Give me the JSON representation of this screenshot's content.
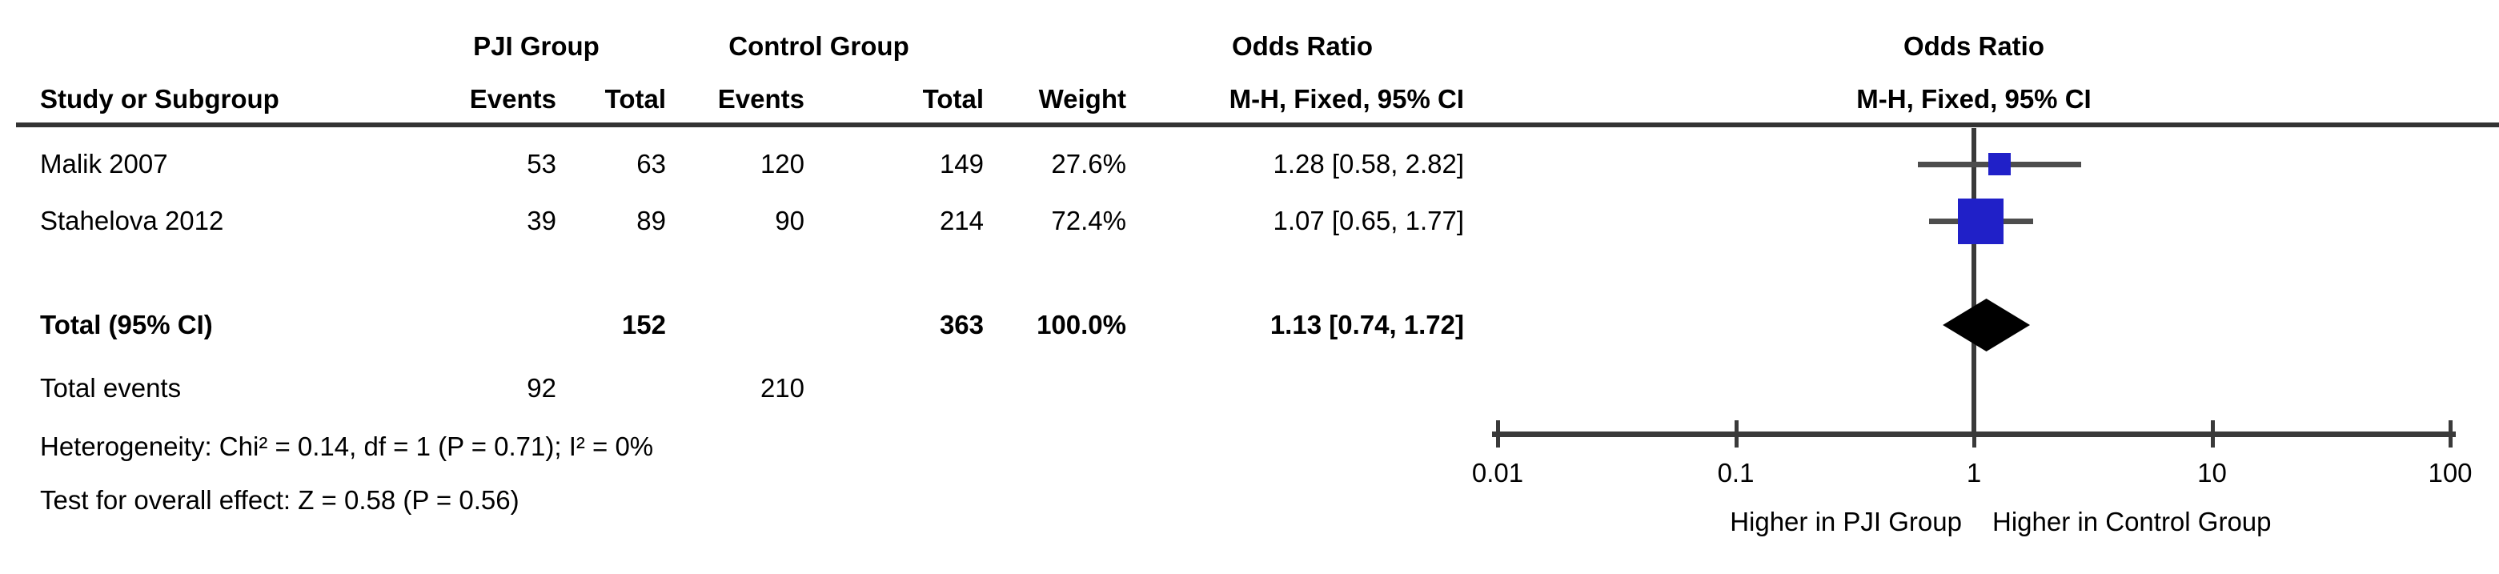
{
  "table": {
    "group_headers": {
      "pji": "PJI Group",
      "control": "Control Group",
      "odds_ratio_left": "Odds Ratio",
      "odds_ratio_right": "Odds Ratio"
    },
    "column_headers": {
      "study": "Study or Subgroup",
      "pji_events": "Events",
      "pji_total": "Total",
      "control_events": "Events",
      "control_total": "Total",
      "weight": "Weight",
      "mh_fixed_ci_left": "M-H, Fixed, 95% CI",
      "mh_fixed_ci_right": "M-H, Fixed, 95% CI"
    },
    "rows": [
      {
        "study": "Malik 2007",
        "pji_events": "53",
        "pji_total": "63",
        "control_events": "120",
        "control_total": "149",
        "weight": "27.6%",
        "or_ci": "1.28 [0.58, 2.82]"
      },
      {
        "study": "Stahelova 2012",
        "pji_events": "39",
        "pji_total": "89",
        "control_events": "90",
        "control_total": "214",
        "weight": "72.4%",
        "or_ci": "1.07 [0.65, 1.77]"
      }
    ],
    "total_row": {
      "label": "Total (95% CI)",
      "pji_total": "152",
      "control_total": "363",
      "weight": "100.0%",
      "or_ci": "1.13 [0.74, 1.72]"
    },
    "total_events_row": {
      "label": "Total events",
      "pji_events": "92",
      "control_events": "210"
    },
    "footnotes": {
      "heterogeneity": "Heterogeneity: Chi² = 0.14, df = 1 (P = 0.71); I² = 0%",
      "overall_effect": "Test for overall effect: Z = 0.58 (P = 0.56)"
    }
  },
  "chart_data": {
    "type": "scatter",
    "subtype": "forest-plot",
    "title": "Odds Ratio",
    "effect_measure": "M-H, Fixed, 95% CI",
    "x_scale": "log10",
    "x_range": [
      0.01,
      100
    ],
    "null_line": 1,
    "axis_ticks": [
      0.01,
      0.1,
      1,
      10,
      100
    ],
    "axis_tick_labels": [
      "0.01",
      "0.1",
      "1",
      "10",
      "100"
    ],
    "studies": [
      {
        "name": "Malik 2007",
        "or": 1.28,
        "ci_low": 0.58,
        "ci_high": 2.82,
        "weight_pct": 27.6
      },
      {
        "name": "Stahelova 2012",
        "or": 1.07,
        "ci_low": 0.65,
        "ci_high": 1.77,
        "weight_pct": 72.4
      }
    ],
    "total": {
      "name": "Total (95% CI)",
      "or": 1.13,
      "ci_low": 0.74,
      "ci_high": 1.72,
      "weight_pct": 100.0
    },
    "footer_left": "Higher in PJI Group",
    "footer_right": "Higher in Control Group",
    "colors": {
      "square": "#2020C8",
      "diamond": "#000000",
      "ci_line": "#4D4D4D",
      "axis": "#3A3A3A",
      "text": "#000000"
    }
  }
}
